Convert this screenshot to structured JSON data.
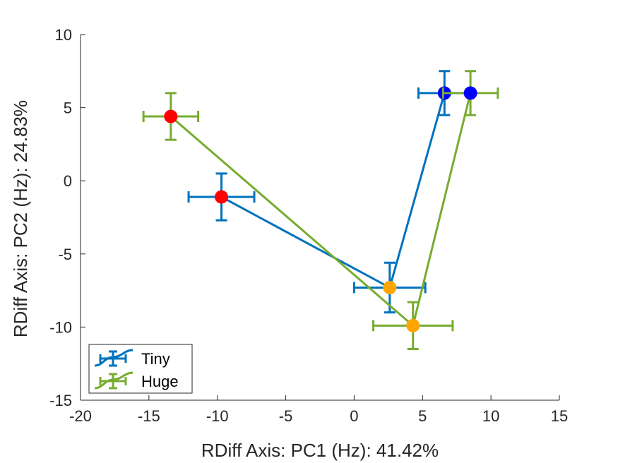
{
  "chart_data": {
    "type": "scatter",
    "xlabel": "RDiff Axis: PC1 (Hz): 41.42%",
    "ylabel": "RDiff Axis: PC2 (Hz): 24.83%",
    "xlim": [
      -20,
      15
    ],
    "ylim": [
      -15,
      10
    ],
    "xticks": [
      -20,
      -15,
      -10,
      -5,
      0,
      5,
      10,
      15
    ],
    "yticks": [
      -15,
      -10,
      -5,
      0,
      5,
      10
    ],
    "xtick_labels": [
      "-20",
      "-15",
      "-10",
      "-5",
      "0",
      "5",
      "10",
      "15"
    ],
    "ytick_labels": [
      "-15",
      "-10",
      "-5",
      "0",
      "5",
      "10"
    ],
    "grid": false,
    "legend_position": "bottom-left",
    "series": [
      {
        "name": "Tiny",
        "color": "#0072BD",
        "points": [
          {
            "x": -9.7,
            "y": -1.1,
            "xerr": 2.4,
            "yerr": 1.6,
            "marker_color": "#FF0000"
          },
          {
            "x": 2.6,
            "y": -7.3,
            "xerr": 2.6,
            "yerr": 1.7,
            "marker_color": "#FFA500"
          },
          {
            "x": 6.6,
            "y": 6.0,
            "xerr": 1.9,
            "yerr": 1.5,
            "marker_color": "#0000FF"
          }
        ]
      },
      {
        "name": "Huge",
        "color": "#77AC30",
        "points": [
          {
            "x": -13.4,
            "y": 4.4,
            "xerr": 2.0,
            "yerr": 1.6,
            "marker_color": "#FF0000"
          },
          {
            "x": 4.3,
            "y": -9.9,
            "xerr": 2.9,
            "yerr": 1.6,
            "marker_color": "#FFA500"
          },
          {
            "x": 8.5,
            "y": 6.0,
            "xerr": 2.0,
            "yerr": 1.5,
            "marker_color": "#0000FF"
          }
        ]
      }
    ]
  }
}
